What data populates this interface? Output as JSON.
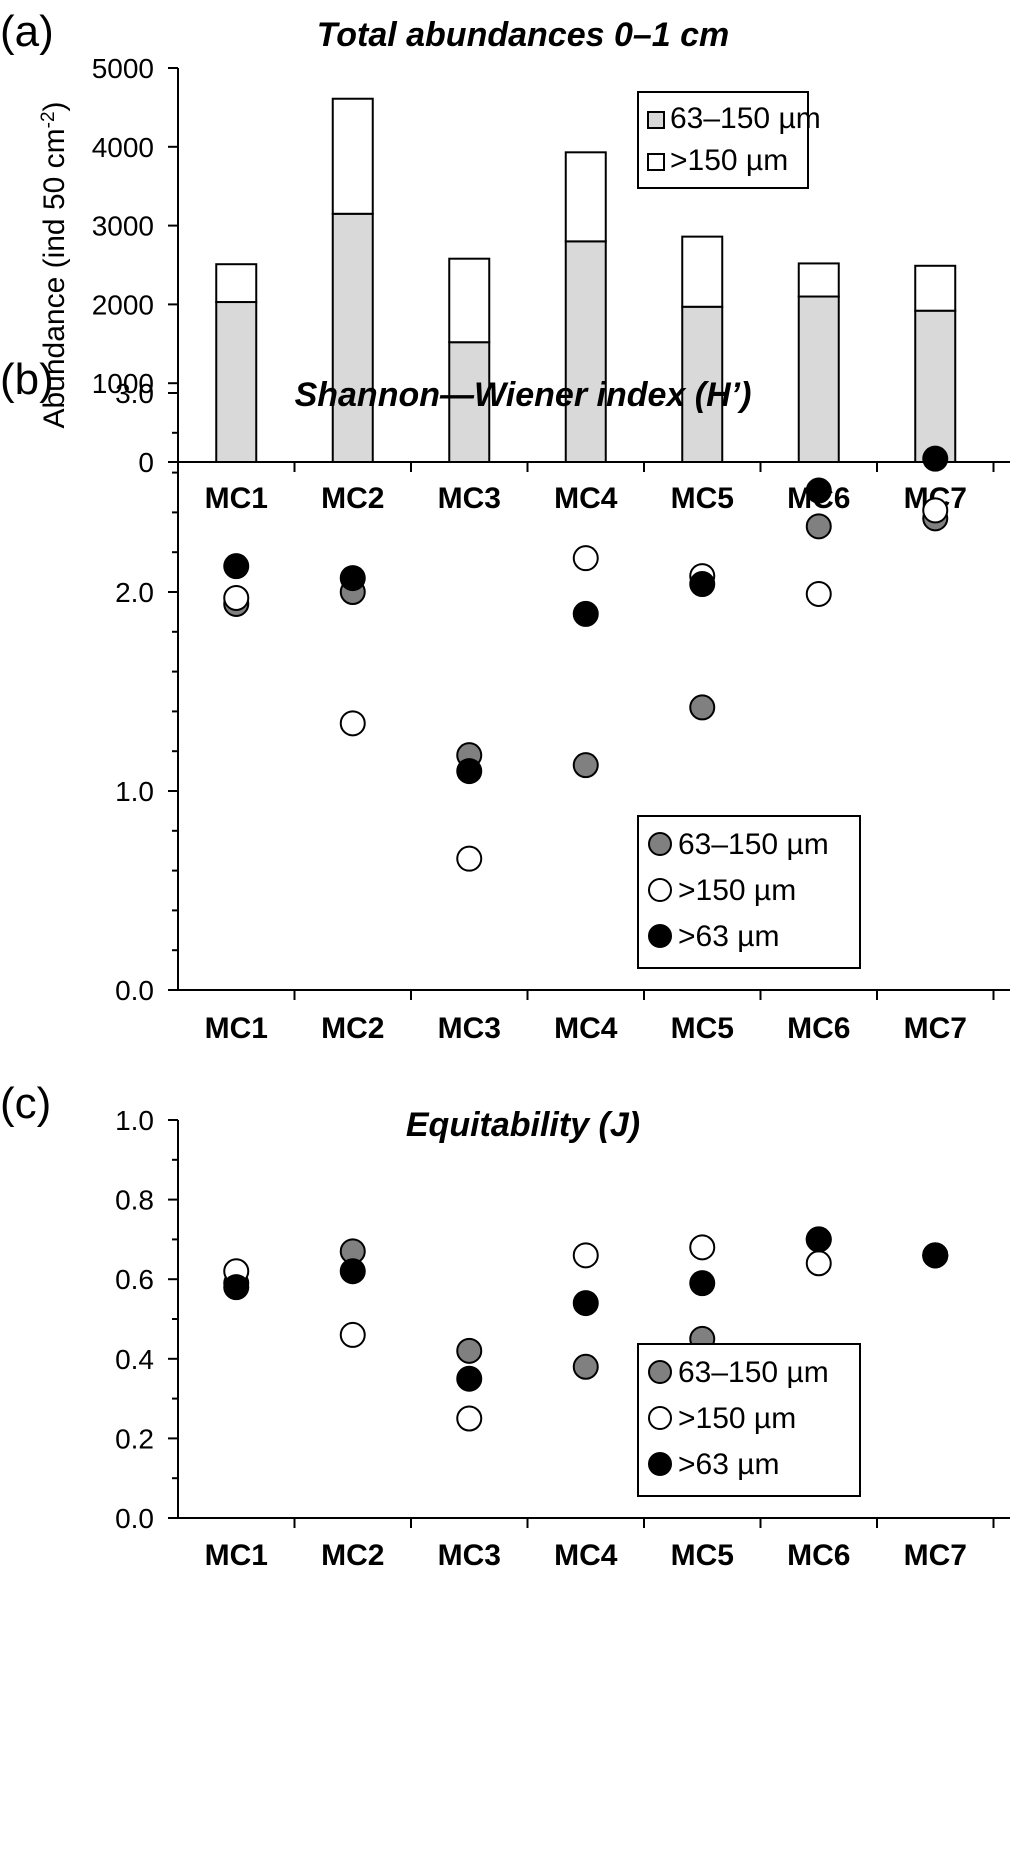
{
  "chart_data": [
    {
      "panel": "(a)",
      "type": "bar",
      "stacked": true,
      "title": "Total abundances 0–1 cm",
      "ylabel": "Abundance (ind  50 cm",
      "ylabel_sup": "-2",
      "ylabel_end": ")",
      "xlabel": "",
      "categories": [
        "MC1",
        "MC2",
        "MC3",
        "MC4",
        "MC5",
        "MC6",
        "MC7"
      ],
      "ylim": [
        0,
        5000
      ],
      "yticks": [
        "0",
        "1000",
        "2000",
        "3000",
        "4000",
        "5000"
      ],
      "series": [
        {
          "name": "63–150 µm",
          "values": [
            2030,
            3150,
            1520,
            2800,
            1970,
            2100,
            1920
          ],
          "color": "#d9d9d9"
        },
        {
          "name": ">150 µm",
          "values": [
            480,
            1460,
            1060,
            1130,
            890,
            420,
            570
          ],
          "color": "#ffffff"
        }
      ],
      "legend_position": "top-right",
      "grid": false
    },
    {
      "panel": "(b)",
      "type": "scatter",
      "title": "Shannon—Wiener index (H’)",
      "ylabel": "",
      "xlabel": "",
      "categories": [
        "MC1",
        "MC2",
        "MC3",
        "MC4",
        "MC5",
        "MC6",
        "MC7"
      ],
      "ylim": [
        0,
        3
      ],
      "yticks": [
        "0.0",
        "1.0",
        "2.0",
        "3.0"
      ],
      "series": [
        {
          "name": "63–150 µm",
          "values": [
            1.94,
            2.0,
            1.18,
            1.13,
            1.42,
            2.33,
            2.37
          ],
          "color": "#808080"
        },
        {
          "name": ">150 µm",
          "values": [
            1.97,
            1.34,
            0.66,
            2.17,
            2.08,
            1.99,
            2.41
          ],
          "color": "#ffffff"
        },
        {
          "name": ">63 µm",
          "values": [
            2.13,
            2.07,
            1.1,
            1.89,
            2.04,
            2.51,
            2.67
          ],
          "color": "#000000"
        }
      ],
      "legend_position": "bottom-right",
      "grid": false
    },
    {
      "panel": "(c)",
      "type": "scatter",
      "title": "Equitability (J)",
      "ylabel": "",
      "xlabel": "",
      "categories": [
        "MC1",
        "MC2",
        "MC3",
        "MC4",
        "MC5",
        "MC6",
        "MC7"
      ],
      "ylim": [
        0,
        1
      ],
      "yticks": [
        "0.0",
        "0.2",
        "0.4",
        "0.6",
        "0.8",
        "1.0"
      ],
      "series": [
        {
          "name": "63–150 µm",
          "values": [
            0.59,
            0.67,
            0.42,
            0.38,
            0.45,
            0.7,
            0.66
          ],
          "color": "#808080"
        },
        {
          "name": ">150 µm",
          "values": [
            0.62,
            0.46,
            0.25,
            0.66,
            0.68,
            0.64,
            0.66
          ],
          "color": "#ffffff"
        },
        {
          "name": ">63 µm",
          "values": [
            0.58,
            0.62,
            0.35,
            0.54,
            0.59,
            0.7,
            0.66
          ],
          "color": "#000000"
        }
      ],
      "legend_position": "bottom-right",
      "grid": false
    }
  ]
}
